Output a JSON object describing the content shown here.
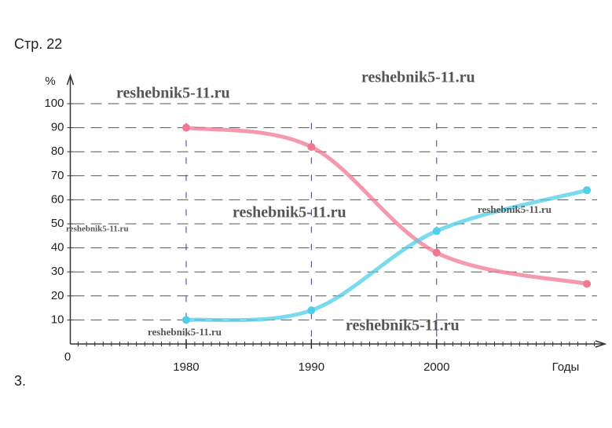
{
  "page_title": "Стр. 22",
  "task_number": "3.",
  "watermarks": [
    "reshebnik5-11.ru",
    "reshebnik5-11.ru",
    "reshebnik5-11.ru",
    "reshebnik5-11.ru",
    "reshebnik5-11.ru",
    "reshebnik5-11.ru",
    "reshebnik5-11.ru"
  ],
  "chart_data": {
    "type": "line",
    "y_label": "%",
    "x_label": "Годы",
    "origin_label": "0",
    "x": [
      1980,
      1990,
      2000,
      2012
    ],
    "series": [
      {
        "color": "#f07890",
        "values": [
          90,
          82,
          38,
          25
        ]
      },
      {
        "color": "#4fcfe8",
        "values": [
          10,
          14,
          47,
          64
        ]
      }
    ],
    "xlim": [
      1971,
      2013
    ],
    "xticks": [
      1980,
      1990,
      2000
    ],
    "ylim": [
      0,
      105
    ],
    "yticks": [
      10,
      20,
      30,
      40,
      50,
      60,
      70,
      80,
      90,
      100
    ],
    "grid": true
  }
}
